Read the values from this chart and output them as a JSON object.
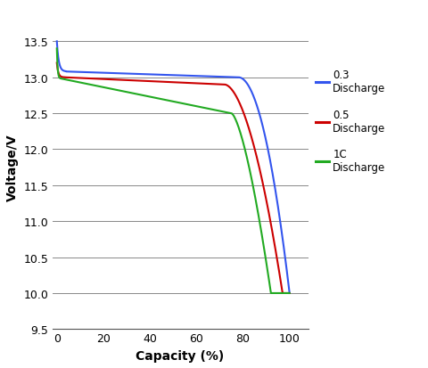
{
  "xlabel": "Capacity (%)",
  "ylabel": "Voltage/V",
  "xlim": [
    -2,
    108
  ],
  "ylim": [
    9.5,
    14.0
  ],
  "yticks": [
    9.5,
    10.0,
    10.5,
    11.0,
    11.5,
    12.0,
    12.5,
    13.0,
    13.5
  ],
  "xticks": [
    0,
    20,
    40,
    60,
    80,
    100
  ],
  "legend": [
    {
      "label": "0.3\nDischarge",
      "color": "#3355ee"
    },
    {
      "label": "0.5\nDischarge",
      "color": "#cc0000"
    },
    {
      "label": "1C\nDischarge",
      "color": "#22aa22"
    }
  ],
  "background_color": "#ffffff",
  "grid_color": "#888888"
}
